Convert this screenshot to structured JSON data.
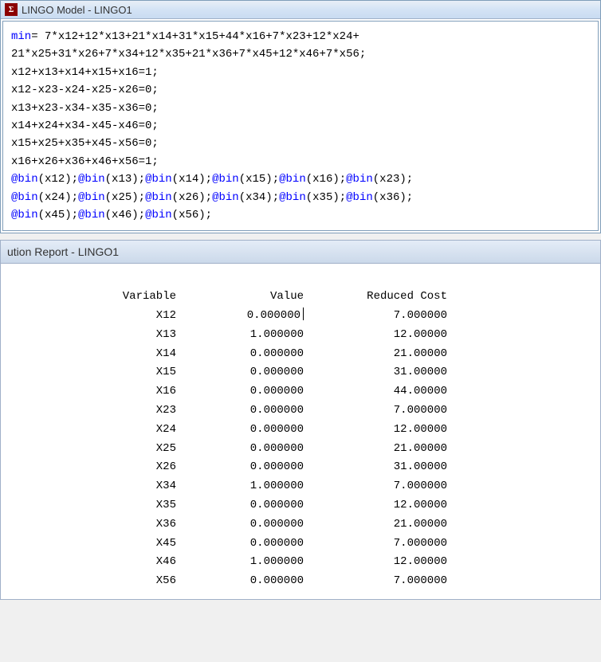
{
  "model_window": {
    "title": "LINGO Model - LINGO1",
    "icon_label": "Σ"
  },
  "code": {
    "min_keyword": "min",
    "line1_after_min": "= 7*x12+12*x13+21*x14+31*x15+44*x16+7*x23+12*x24+",
    "line2": "21*x25+31*x26+7*x34+12*x35+21*x36+7*x45+12*x46+7*x56;",
    "line3": "x12+x13+x14+x15+x16=1;",
    "line4": "x12-x23-x24-x25-x26=0;",
    "line5": "x13+x23-x34-x35-x36=0;",
    "line6": "x14+x24+x34-x45-x46=0;",
    "line7": "x15+x25+x35+x45-x56=0;",
    "line8": "x16+x26+x36+x46+x56=1;",
    "bin_keyword": "@bin",
    "bin_args_line1": [
      "(x12);",
      "(x13);",
      "(x14);",
      "(x15);",
      "(x16);",
      "(x23);"
    ],
    "bin_args_line2": [
      "(x24);",
      "(x25);",
      "(x26);",
      "(x34);",
      "(x35);",
      "(x36);"
    ],
    "bin_args_line3": [
      "(x45);",
      "(x46);",
      "(x56);"
    ]
  },
  "report_window": {
    "title": "ution Report - LINGO1"
  },
  "report": {
    "headers": {
      "variable": "Variable",
      "value": "Value",
      "reduced_cost": "Reduced Cost"
    },
    "rows": [
      {
        "var": "X12",
        "val": "0.000000",
        "cost": "7.000000",
        "cursor": true
      },
      {
        "var": "X13",
        "val": "1.000000",
        "cost": "12.00000"
      },
      {
        "var": "X14",
        "val": "0.000000",
        "cost": "21.00000"
      },
      {
        "var": "X15",
        "val": "0.000000",
        "cost": "31.00000"
      },
      {
        "var": "X16",
        "val": "0.000000",
        "cost": "44.00000"
      },
      {
        "var": "X23",
        "val": "0.000000",
        "cost": "7.000000"
      },
      {
        "var": "X24",
        "val": "0.000000",
        "cost": "12.00000"
      },
      {
        "var": "X25",
        "val": "0.000000",
        "cost": "21.00000"
      },
      {
        "var": "X26",
        "val": "0.000000",
        "cost": "31.00000"
      },
      {
        "var": "X34",
        "val": "1.000000",
        "cost": "7.000000"
      },
      {
        "var": "X35",
        "val": "0.000000",
        "cost": "12.00000"
      },
      {
        "var": "X36",
        "val": "0.000000",
        "cost": "21.00000"
      },
      {
        "var": "X45",
        "val": "0.000000",
        "cost": "7.000000"
      },
      {
        "var": "X46",
        "val": "1.000000",
        "cost": "12.00000"
      },
      {
        "var": "X56",
        "val": "0.000000",
        "cost": "7.000000"
      }
    ]
  }
}
